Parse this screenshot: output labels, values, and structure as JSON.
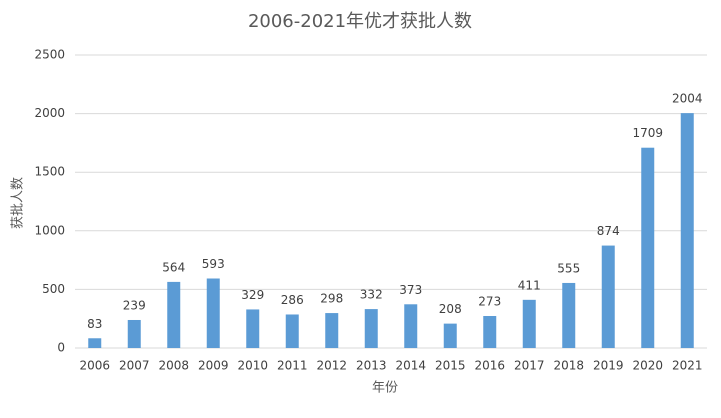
{
  "chart_data": {
    "type": "bar",
    "title": "2006-2021年优才获批人数",
    "x_label": "年份",
    "y_label": "获批人数",
    "categories": [
      "2006",
      "2007",
      "2008",
      "2009",
      "2010",
      "2011",
      "2012",
      "2013",
      "2014",
      "2015",
      "2016",
      "2017",
      "2018",
      "2019",
      "2020",
      "2021"
    ],
    "values": [
      83,
      239,
      564,
      593,
      329,
      286,
      298,
      332,
      373,
      208,
      273,
      411,
      555,
      874,
      1709,
      2004
    ],
    "color": "#5b9bd5",
    "ylim": [
      0,
      2500
    ],
    "yticks": [
      0,
      500,
      1000,
      1500,
      2000,
      2500
    ],
    "grid": true
  }
}
